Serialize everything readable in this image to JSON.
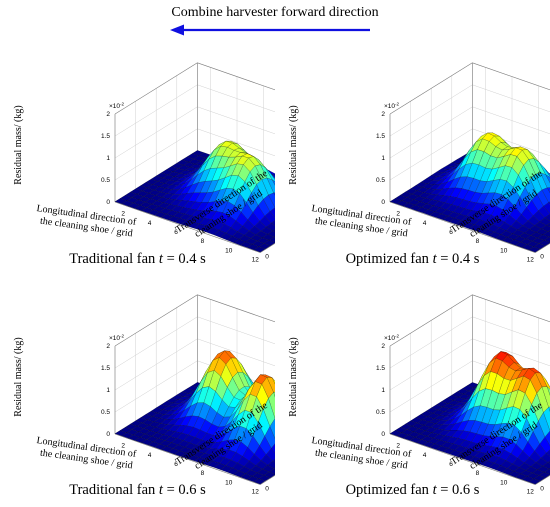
{
  "header": {
    "title": "Combine harvester forward direction",
    "arrow_color": "#1010e0"
  },
  "axes": {
    "ylabel": "Residual mass/ (kg)",
    "xlabel_line1": "Longitudinal direction of",
    "xlabel_line2": "the cleaning shoe / grid",
    "zlabel_line1": "Transverse direction of the",
    "zlabel_line2": "cleaning shoe / grid",
    "exponent": "×10",
    "exponent_power": "-2",
    "y_ticks": [
      "0",
      "0.5",
      "1",
      "1.5",
      "2"
    ],
    "x_ticks": [
      "2",
      "4",
      "6",
      "8",
      "10",
      "12"
    ],
    "z_ticks": [
      "0",
      "2",
      "4",
      "6",
      "8"
    ]
  },
  "chart_data": [
    {
      "type": "surface",
      "caption_prefix": "Traditional fan ",
      "caption_var": "t",
      "caption_suffix": " = 0.4 s",
      "xlim": [
        1,
        12
      ],
      "zlim": [
        0,
        8
      ],
      "ylim": [
        0,
        2
      ],
      "y_scale": "x10^-2",
      "colormap": "jet",
      "peaks": [
        {
          "x": 5.5,
          "z": 5.0,
          "height": 1.05
        },
        {
          "x": 8.2,
          "z": 4.0,
          "height": 1.15
        }
      ]
    },
    {
      "type": "surface",
      "caption_prefix": "Optimized fan ",
      "caption_var": "t",
      "caption_suffix": " = 0.4 s",
      "xlim": [
        1,
        12
      ],
      "zlim": [
        0,
        8
      ],
      "ylim": [
        0,
        2
      ],
      "y_scale": "x10^-2",
      "colormap": "jet",
      "peaks": [
        {
          "x": 4.5,
          "z": 5.0,
          "height": 1.15
        },
        {
          "x": 7.5,
          "z": 4.5,
          "height": 1.2
        }
      ]
    },
    {
      "type": "surface",
      "caption_prefix": "Traditional fan ",
      "caption_var": "t",
      "caption_suffix": " = 0.6 s",
      "xlim": [
        1,
        12
      ],
      "zlim": [
        0,
        8
      ],
      "ylim": [
        0,
        2
      ],
      "y_scale": "x10^-2",
      "colormap": "jet",
      "peaks": [
        {
          "x": 5.0,
          "z": 5.5,
          "height": 1.5
        },
        {
          "x": 9.0,
          "z": 4.5,
          "height": 1.8
        }
      ]
    },
    {
      "type": "surface",
      "caption_prefix": "Optimized fan ",
      "caption_var": "t",
      "caption_suffix": " = 0.6 s",
      "xlim": [
        1,
        12
      ],
      "zlim": [
        0,
        8
      ],
      "ylim": [
        0,
        2
      ],
      "y_scale": "x10^-2",
      "colormap": "jet",
      "peaks": [
        {
          "x": 5.5,
          "z": 5.0,
          "height": 1.55
        },
        {
          "x": 8.5,
          "z": 4.5,
          "height": 1.65
        }
      ]
    }
  ]
}
